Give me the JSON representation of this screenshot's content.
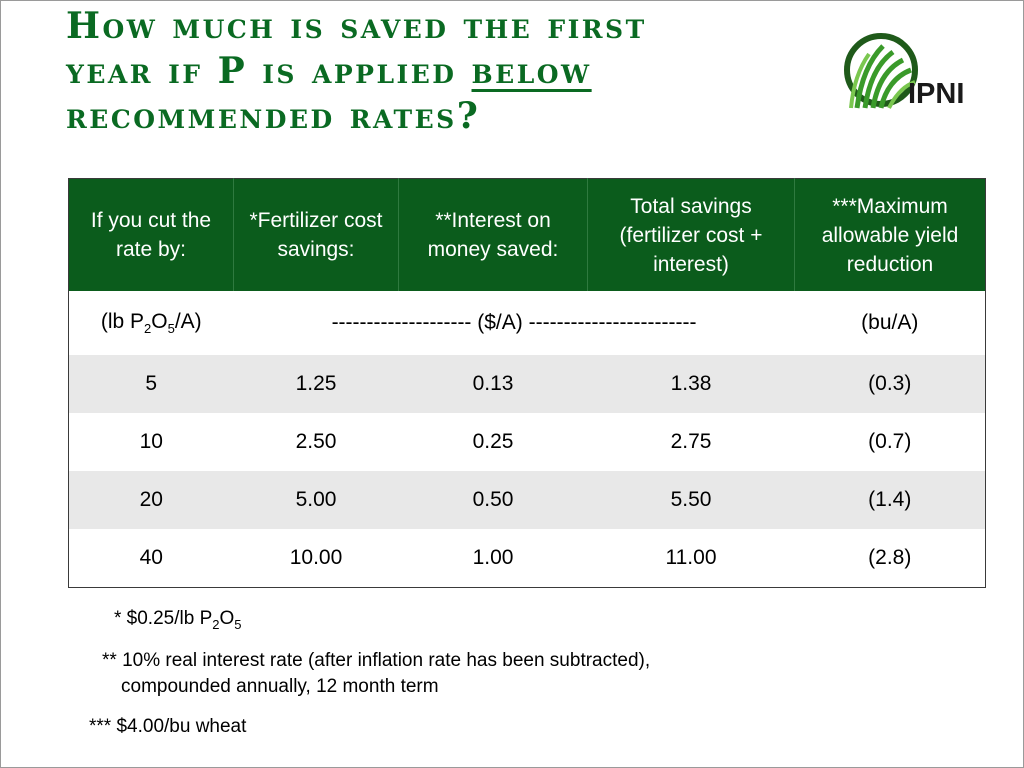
{
  "title": {
    "line1": "How much is saved the first",
    "line2_prefix": "year if P is applied ",
    "line2_emphasis": "below",
    "line3": "recommended rates?"
  },
  "logo": {
    "text": "IPNI",
    "colors": {
      "green": "#3a9a2a",
      "dark": "#1f5a1a"
    }
  },
  "table": {
    "headers": [
      "If you cut the rate by:",
      "*Fertilizer cost savings:",
      "**Interest on money saved:",
      "Total savings (fertilizer cost + interest)",
      "***Maximum allowable yield reduction"
    ],
    "units": {
      "rate_prefix": "(lb P",
      "rate_sub1": "2",
      "rate_mid": "O",
      "rate_sub2": "5",
      "rate_suffix": "/A)",
      "money": "-------------------- ($/A) ------------------------",
      "yield": "(bu/A)"
    },
    "rows": [
      [
        "5",
        "1.25",
        "0.13",
        "1.38",
        "(0.3)"
      ],
      [
        "10",
        "2.50",
        "0.25",
        "2.75",
        "(0.7)"
      ],
      [
        "20",
        "5.00",
        "0.50",
        "5.50",
        "(1.4)"
      ],
      [
        "40",
        "10.00",
        "1.00",
        "11.00",
        "(2.8)"
      ]
    ]
  },
  "footnotes": {
    "n1_prefix": "* $0.25/lb P",
    "n1_sub1": "2",
    "n1_mid": "O",
    "n1_sub2": "5",
    "n2_line1": "** 10% real interest rate (after inflation rate has been subtracted),",
    "n2_line2": "compounded annually, 12 month term",
    "n3": "***  $4.00/bu wheat"
  },
  "colors": {
    "header_bg": "#0b5c1c",
    "title": "#0a6a22",
    "row_shade": "#e8e8e8"
  }
}
